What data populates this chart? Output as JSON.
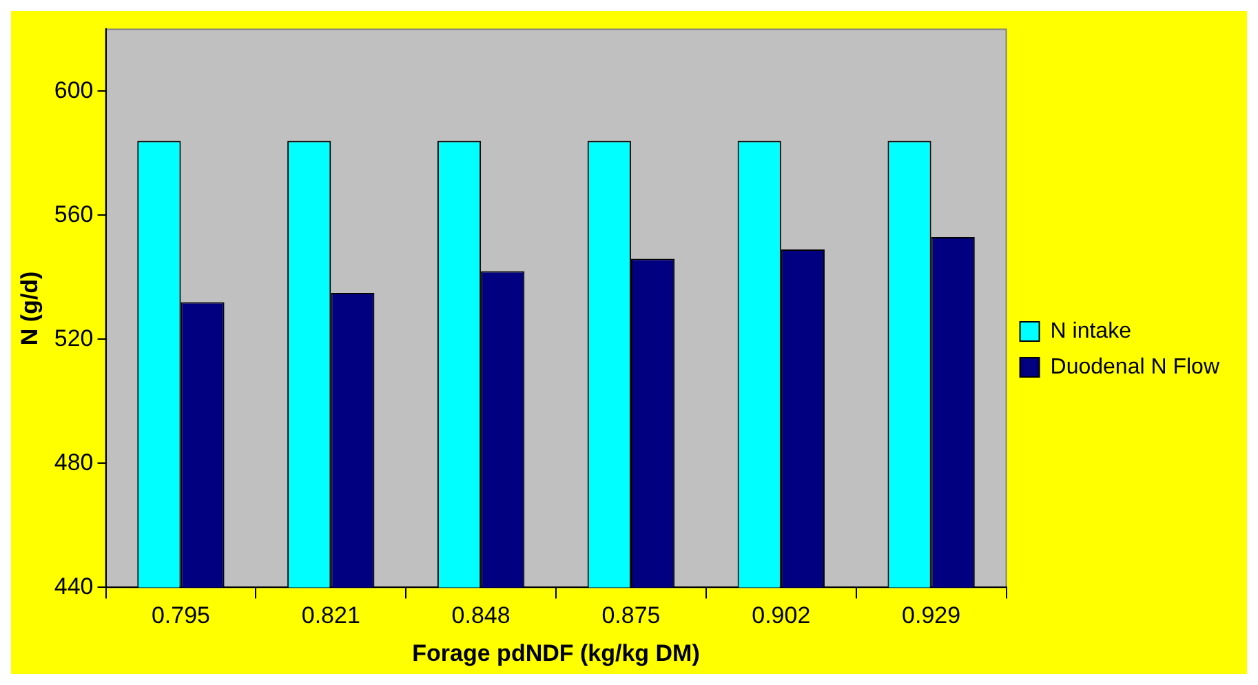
{
  "chart_data": {
    "type": "bar",
    "xlabel": "Forage pdNDF (kg/kg DM)",
    "ylabel": "N (g/d)",
    "categories": [
      "0.795",
      "0.821",
      "0.848",
      "0.875",
      "0.902",
      "0.929"
    ],
    "series": [
      {
        "name": "N intake",
        "color": "#00ffff",
        "values": [
          584,
          584,
          584,
          584,
          584,
          584
        ]
      },
      {
        "name": "Duodenal N Flow",
        "color": "#000080",
        "values": [
          532,
          535,
          542,
          546,
          549,
          553
        ]
      }
    ],
    "ylim": [
      440,
      620
    ],
    "yticks": [
      440,
      480,
      520,
      560,
      600
    ],
    "grid": false,
    "legend": "right"
  }
}
